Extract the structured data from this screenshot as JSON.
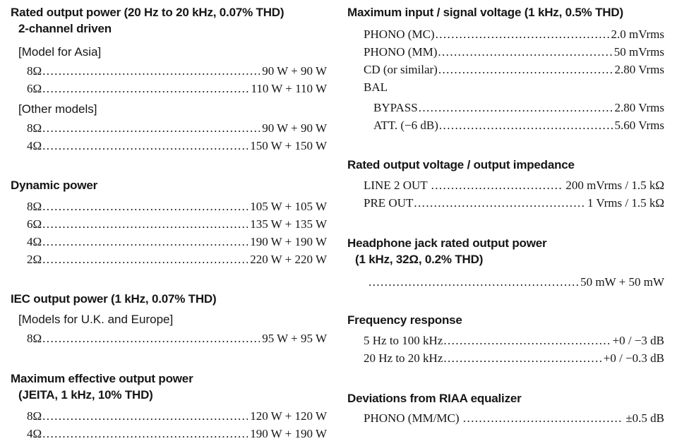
{
  "doc": {
    "background": "#ffffff",
    "text_color": "#161616"
  },
  "sections": {
    "rop": {
      "heading": "Rated output power (20 Hz to 20 kHz, 0.07% THD)",
      "subheading": "2-channel driven",
      "asia": {
        "bracket": "[Model for Asia]",
        "rows": [
          {
            "label": "8Ω",
            "value": "90 W + 90 W"
          },
          {
            "label": "6Ω",
            "value": "110 W + 110 W"
          }
        ]
      },
      "other": {
        "bracket": "[Other models]",
        "rows": [
          {
            "label": "8Ω",
            "value": "90 W + 90 W"
          },
          {
            "label": "4Ω",
            "value": "150 W + 150 W"
          }
        ]
      }
    },
    "dynamic": {
      "heading": "Dynamic power",
      "rows": [
        {
          "label": "8Ω",
          "value": "105 W + 105 W"
        },
        {
          "label": "6Ω",
          "value": "135 W + 135 W"
        },
        {
          "label": "4Ω",
          "value": "190 W + 190 W"
        },
        {
          "label": "2Ω",
          "value": "220 W + 220 W"
        }
      ]
    },
    "iec": {
      "heading": "IEC output power (1 kHz, 0.07% THD)",
      "bracket": "[Models for U.K. and Europe]",
      "rows": [
        {
          "label": "8Ω",
          "value": "95 W + 95 W"
        }
      ]
    },
    "maxeff": {
      "heading": "Maximum effective output power",
      "subheading": "(JEITA, 1 kHz, 10% THD)",
      "rows": [
        {
          "label": "8Ω",
          "value": "120 W + 120 W"
        },
        {
          "label": "4Ω",
          "value": "190 W + 190 W"
        }
      ]
    },
    "maxin": {
      "heading": "Maximum input / signal voltage (1 kHz, 0.5% THD)",
      "rows": [
        {
          "label": "PHONO (MC)",
          "value": "2.0 mVrms"
        },
        {
          "label": "PHONO (MM)",
          "value": "50 mVrms"
        },
        {
          "label": "CD (or similar)",
          "value": "2.80 Vrms"
        }
      ],
      "group_label": "BAL",
      "sub_rows": [
        {
          "label": "BYPASS",
          "value": "2.80 Vrms"
        },
        {
          "label": "ATT. (−6 dB)",
          "value": "5.60 Vrms"
        }
      ]
    },
    "rov": {
      "heading": "Rated output voltage / output impedance",
      "rows": [
        {
          "label": "LINE 2 OUT ",
          "value": "200 mVrms / 1.5 kΩ"
        },
        {
          "label": "PRE OUT",
          "value": "1 Vrms / 1.5 kΩ"
        }
      ]
    },
    "headphone": {
      "heading": "Headphone jack rated output power",
      "subheading": "(1 kHz, 32Ω, 0.2% THD)",
      "rows": [
        {
          "label": "",
          "value": "50 mW + 50 mW"
        }
      ]
    },
    "freq": {
      "heading": "Frequency response",
      "rows": [
        {
          "label": "5 Hz to 100 kHz",
          "value": "+0 / −3 dB"
        },
        {
          "label": "20 Hz to 20 kHz",
          "value": "+0 / −0.3 dB"
        }
      ]
    },
    "riaa": {
      "heading": "Deviations from RIAA equalizer",
      "rows": [
        {
          "label": "PHONO (MM/MC) ",
          "value": "±0.5 dB"
        }
      ]
    }
  }
}
